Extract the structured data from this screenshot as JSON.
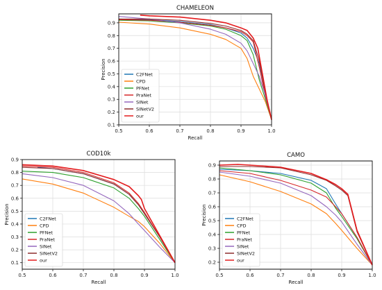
{
  "chart_data": [
    {
      "type": "line",
      "title": "CHAMELEON",
      "xlabel": "Recall",
      "ylabel": "Precision",
      "xlim": [
        0.5,
        1.0
      ],
      "ylim": [
        0.1,
        0.97
      ],
      "xticks": [
        "0.5",
        "0.6",
        "0.7",
        "0.8",
        "0.9",
        "1.0"
      ],
      "yticks": [
        "0.1",
        "0.2",
        "0.3",
        "0.4",
        "0.5",
        "0.6",
        "0.7",
        "0.8",
        "0.9"
      ],
      "grid": true,
      "legend_position": "lower-left",
      "series": [
        {
          "name": "C2FNet",
          "color": "#1f77b4",
          "x": [
            0.5,
            0.6,
            0.7,
            0.8,
            0.85,
            0.9,
            0.92,
            0.94,
            0.96,
            0.98,
            1.0
          ],
          "y": [
            0.93,
            0.925,
            0.91,
            0.885,
            0.86,
            0.82,
            0.78,
            0.7,
            0.58,
            0.35,
            0.14
          ]
        },
        {
          "name": "CPD",
          "color": "#ff7f0e",
          "x": [
            0.5,
            0.6,
            0.7,
            0.8,
            0.85,
            0.9,
            0.92,
            0.94,
            0.96,
            0.98,
            1.0
          ],
          "y": [
            0.905,
            0.89,
            0.86,
            0.81,
            0.77,
            0.7,
            0.62,
            0.48,
            0.38,
            0.28,
            0.14
          ]
        },
        {
          "name": "PFNet",
          "color": "#2ca02c",
          "x": [
            0.5,
            0.6,
            0.7,
            0.8,
            0.85,
            0.9,
            0.92,
            0.94,
            0.96,
            0.98,
            1.0
          ],
          "y": [
            0.92,
            0.915,
            0.9,
            0.875,
            0.85,
            0.8,
            0.76,
            0.65,
            0.45,
            0.3,
            0.14
          ]
        },
        {
          "name": "PraNet",
          "color": "#d62728",
          "x": [
            0.5,
            0.6,
            0.7,
            0.8,
            0.85,
            0.9,
            0.92,
            0.94,
            0.96,
            0.98,
            1.0
          ],
          "y": [
            0.925,
            0.92,
            0.905,
            0.88,
            0.86,
            0.83,
            0.8,
            0.75,
            0.55,
            0.32,
            0.14
          ]
        },
        {
          "name": "SINet",
          "color": "#9467bd",
          "x": [
            0.5,
            0.6,
            0.7,
            0.8,
            0.85,
            0.9,
            0.92,
            0.94,
            0.96,
            0.98,
            1.0
          ],
          "y": [
            0.95,
            0.93,
            0.9,
            0.85,
            0.81,
            0.74,
            0.68,
            0.58,
            0.48,
            0.33,
            0.14
          ]
        },
        {
          "name": "SINetV2",
          "color": "#8c2b2b",
          "x": [
            0.5,
            0.6,
            0.7,
            0.8,
            0.85,
            0.9,
            0.92,
            0.94,
            0.96,
            0.98,
            1.0
          ],
          "y": [
            0.93,
            0.93,
            0.92,
            0.895,
            0.875,
            0.84,
            0.81,
            0.76,
            0.6,
            0.35,
            0.14
          ]
        },
        {
          "name": "our",
          "color": "#e41a1c",
          "x": [
            0.57,
            0.6,
            0.7,
            0.8,
            0.85,
            0.9,
            0.92,
            0.94,
            0.955,
            0.97,
            0.985,
            1.0
          ],
          "y": [
            0.96,
            0.955,
            0.945,
            0.92,
            0.9,
            0.86,
            0.84,
            0.78,
            0.7,
            0.5,
            0.3,
            0.14
          ]
        }
      ]
    },
    {
      "type": "line",
      "title": "COD10k",
      "xlabel": "Recall",
      "ylabel": "Precision",
      "xlim": [
        0.5,
        1.0
      ],
      "ylim": [
        0.05,
        0.9
      ],
      "xticks": [
        "0.5",
        "0.6",
        "0.7",
        "0.8",
        "0.9",
        "1.0"
      ],
      "yticks": [
        "0.1",
        "0.2",
        "0.3",
        "0.4",
        "0.5",
        "0.6",
        "0.7",
        "0.8",
        "0.9"
      ],
      "grid": true,
      "legend_position": "lower-left",
      "series": [
        {
          "name": "C2FNet",
          "color": "#1f77b4",
          "x": [
            0.55,
            0.6,
            0.7,
            0.8,
            0.85,
            0.88,
            0.9,
            0.95,
            1.0
          ],
          "y": [
            0.84,
            0.83,
            0.79,
            0.71,
            0.63,
            0.55,
            0.48,
            0.3,
            0.1
          ]
        },
        {
          "name": "CPD",
          "color": "#ff7f0e",
          "x": [
            0.5,
            0.6,
            0.7,
            0.8,
            0.85,
            0.88,
            0.9,
            0.95,
            1.0
          ],
          "y": [
            0.75,
            0.71,
            0.64,
            0.53,
            0.46,
            0.42,
            0.38,
            0.25,
            0.1
          ]
        },
        {
          "name": "PFNet",
          "color": "#2ca02c",
          "x": [
            0.5,
            0.6,
            0.7,
            0.8,
            0.85,
            0.88,
            0.9,
            0.95,
            1.0
          ],
          "y": [
            0.81,
            0.8,
            0.76,
            0.68,
            0.6,
            0.52,
            0.46,
            0.28,
            0.1
          ]
        },
        {
          "name": "PraNet",
          "color": "#d62728",
          "x": [
            0.5,
            0.6,
            0.7,
            0.8,
            0.85,
            0.88,
            0.9,
            0.95,
            1.0
          ],
          "y": [
            0.85,
            0.84,
            0.8,
            0.72,
            0.64,
            0.56,
            0.49,
            0.3,
            0.1
          ]
        },
        {
          "name": "SINet",
          "color": "#9467bd",
          "x": [
            0.5,
            0.6,
            0.7,
            0.8,
            0.85,
            0.88,
            0.9,
            0.95,
            1.0
          ],
          "y": [
            0.79,
            0.76,
            0.7,
            0.58,
            0.48,
            0.4,
            0.35,
            0.22,
            0.1
          ]
        },
        {
          "name": "SINetV2",
          "color": "#8c2b2b",
          "x": [
            0.5,
            0.6,
            0.7,
            0.8,
            0.85,
            0.88,
            0.9,
            0.95,
            1.0
          ],
          "y": [
            0.84,
            0.83,
            0.79,
            0.71,
            0.63,
            0.55,
            0.48,
            0.3,
            0.1
          ]
        },
        {
          "name": "our",
          "color": "#e41a1c",
          "x": [
            0.5,
            0.6,
            0.7,
            0.8,
            0.85,
            0.88,
            0.89,
            0.9,
            0.95,
            1.0
          ],
          "y": [
            0.86,
            0.85,
            0.815,
            0.745,
            0.69,
            0.62,
            0.59,
            0.52,
            0.31,
            0.1
          ]
        }
      ]
    },
    {
      "type": "line",
      "title": "CAMO",
      "xlabel": "Recall",
      "ylabel": "Precision",
      "xlim": [
        0.5,
        1.0
      ],
      "ylim": [
        0.15,
        0.93
      ],
      "xticks": [
        "0.5",
        "0.6",
        "0.7",
        "0.8",
        "0.9",
        "1.0"
      ],
      "yticks": [
        "0.2",
        "0.3",
        "0.4",
        "0.5",
        "0.6",
        "0.7",
        "0.8",
        "0.9"
      ],
      "grid": true,
      "legend_position": "lower-left",
      "series": [
        {
          "name": "C2FNet",
          "color": "#1f77b4",
          "x": [
            0.5,
            0.6,
            0.7,
            0.8,
            0.85,
            0.88,
            0.9,
            0.95,
            1.0
          ],
          "y": [
            0.87,
            0.86,
            0.84,
            0.79,
            0.73,
            0.62,
            0.55,
            0.38,
            0.18
          ]
        },
        {
          "name": "CPD",
          "color": "#ff7f0e",
          "x": [
            0.5,
            0.6,
            0.7,
            0.8,
            0.85,
            0.88,
            0.9,
            0.95,
            1.0
          ],
          "y": [
            0.83,
            0.78,
            0.71,
            0.62,
            0.55,
            0.48,
            0.43,
            0.3,
            0.18
          ]
        },
        {
          "name": "PFNet",
          "color": "#2ca02c",
          "x": [
            0.5,
            0.6,
            0.7,
            0.8,
            0.85,
            0.88,
            0.9,
            0.95,
            1.0
          ],
          "y": [
            0.88,
            0.86,
            0.83,
            0.77,
            0.7,
            0.59,
            0.53,
            0.37,
            0.18
          ]
        },
        {
          "name": "PraNet",
          "color": "#d62728",
          "x": [
            0.5,
            0.6,
            0.7,
            0.8,
            0.85,
            0.88,
            0.9,
            0.95,
            1.0
          ],
          "y": [
            0.86,
            0.84,
            0.79,
            0.72,
            0.67,
            0.6,
            0.55,
            0.38,
            0.18
          ]
        },
        {
          "name": "SINet",
          "color": "#9467bd",
          "x": [
            0.5,
            0.6,
            0.7,
            0.8,
            0.85,
            0.88,
            0.9,
            0.95,
            1.0
          ],
          "y": [
            0.85,
            0.82,
            0.77,
            0.68,
            0.6,
            0.54,
            0.49,
            0.33,
            0.18
          ]
        },
        {
          "name": "SINetV2",
          "color": "#8c2b2b",
          "x": [
            0.5,
            0.6,
            0.7,
            0.8,
            0.85,
            0.88,
            0.9,
            0.92,
            0.95,
            1.0
          ],
          "y": [
            0.89,
            0.89,
            0.88,
            0.83,
            0.79,
            0.75,
            0.72,
            0.68,
            0.42,
            0.18
          ]
        },
        {
          "name": "our",
          "color": "#e41a1c",
          "x": [
            0.5,
            0.56,
            0.6,
            0.7,
            0.8,
            0.85,
            0.88,
            0.9,
            0.92,
            0.95,
            1.0
          ],
          "y": [
            0.9,
            0.905,
            0.9,
            0.885,
            0.84,
            0.795,
            0.76,
            0.73,
            0.69,
            0.43,
            0.18
          ]
        }
      ]
    }
  ]
}
